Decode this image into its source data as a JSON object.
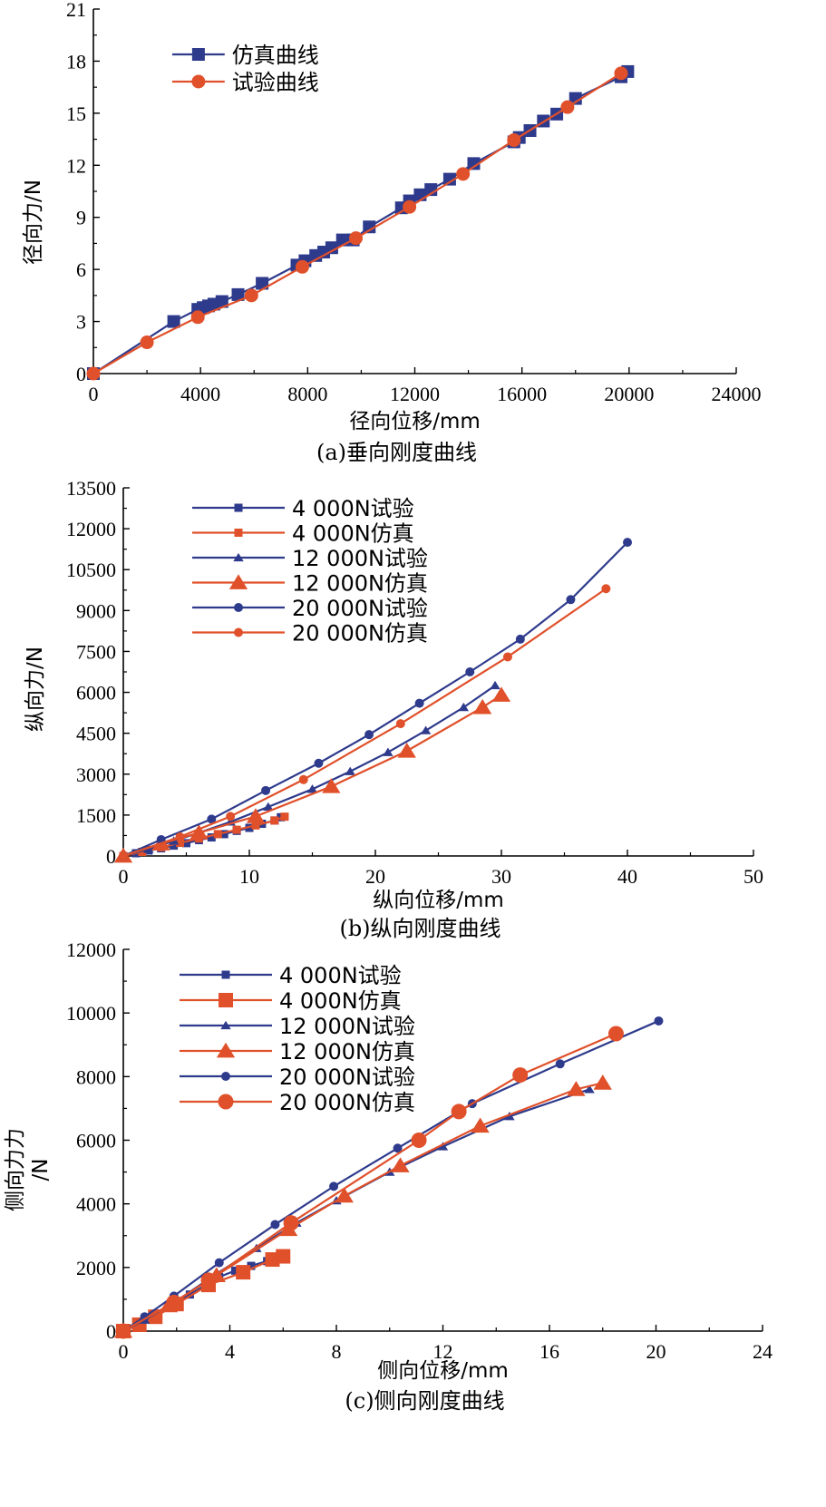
{
  "colors": {
    "sim_blue": "#2e3a8c",
    "test_orange": "#e0502a",
    "line_blue": "#3a3f93"
  },
  "chart_data": [
    {
      "id": "a",
      "type": "line",
      "caption": "(a)垂向刚度曲线",
      "xlabel": "径向位移/mm",
      "ylabel": "径向力/N",
      "xlim": [
        0,
        24000
      ],
      "ylim": [
        0,
        21
      ],
      "xticks": [
        0,
        4000,
        8000,
        12000,
        16000,
        20000,
        24000
      ],
      "yticks": [
        0,
        3,
        6,
        9,
        12,
        15,
        18,
        21
      ],
      "legend_position": "top-left",
      "series": [
        {
          "name": "仿真曲线",
          "color": "#2e3a8c",
          "marker": "square",
          "x": [
            0,
            3000,
            3900,
            4100,
            4300,
            4500,
            4800,
            5400,
            6300,
            7600,
            7900,
            8300,
            8600,
            8900,
            9300,
            9700,
            10300,
            11500,
            11800,
            12200,
            12600,
            13300,
            14200,
            15700,
            15900,
            16300,
            16800,
            17300,
            18000,
            19700,
            19950
          ],
          "y": [
            0,
            3.0,
            3.7,
            3.8,
            3.9,
            4.0,
            4.15,
            4.55,
            5.2,
            6.25,
            6.5,
            6.8,
            7.0,
            7.25,
            7.7,
            7.7,
            8.45,
            9.55,
            9.95,
            10.3,
            10.6,
            11.2,
            12.1,
            13.35,
            13.6,
            14.0,
            14.55,
            14.95,
            15.85,
            17.1,
            17.4
          ]
        },
        {
          "name": "试验曲线",
          "color": "#e0502a",
          "marker": "circle",
          "x": [
            0,
            2000,
            3900,
            5900,
            7800,
            9800,
            11800,
            13800,
            15700,
            17700,
            19700
          ],
          "y": [
            0,
            1.8,
            3.25,
            4.5,
            6.15,
            7.8,
            9.6,
            11.5,
            13.45,
            15.35,
            17.3
          ]
        }
      ]
    },
    {
      "id": "b",
      "type": "line",
      "caption": "(b)纵向刚度曲线",
      "xlabel": "纵向位移/mm",
      "ylabel": "纵向力/N",
      "xlim": [
        0,
        50
      ],
      "ylim": [
        0,
        13500
      ],
      "xticks": [
        0,
        10,
        20,
        30,
        40,
        50
      ],
      "yticks": [
        0,
        1500,
        3000,
        4500,
        6000,
        7500,
        9000,
        10500,
        12000,
        13500
      ],
      "legend_position": "top-left",
      "series": [
        {
          "name": "4 000N试验",
          "color": "#2e3a8c",
          "marker": "square",
          "msize": "small",
          "x": [
            0,
            1,
            2,
            3,
            4,
            5,
            6,
            7,
            8,
            9,
            10,
            11,
            12,
            12.5
          ],
          "y": [
            0,
            100,
            200,
            280,
            380,
            470,
            580,
            680,
            800,
            920,
            1030,
            1180,
            1300,
            1420
          ]
        },
        {
          "name": "4 000N仿真",
          "color": "#e0502a",
          "marker": "square",
          "msize": "small",
          "x": [
            0,
            1.5,
            3,
            4.5,
            6,
            7.5,
            9,
            10.5,
            12,
            12.8
          ],
          "y": [
            0,
            150,
            320,
            480,
            640,
            800,
            960,
            1120,
            1300,
            1440
          ]
        },
        {
          "name": "12 000N试验",
          "color": "#2e3a8c",
          "marker": "triangle",
          "msize": "small",
          "x": [
            0,
            2,
            4,
            6,
            8.5,
            11.5,
            15,
            18,
            21,
            24,
            27,
            29.5
          ],
          "y": [
            0,
            250,
            550,
            850,
            1250,
            1800,
            2450,
            3100,
            3800,
            4600,
            5450,
            6250
          ]
        },
        {
          "name": "12 000N仿真",
          "color": "#e0502a",
          "marker": "triangle",
          "msize": "large",
          "x": [
            0,
            3,
            6,
            10.5,
            16.5,
            22.5,
            28.5,
            30
          ],
          "y": [
            0,
            450,
            850,
            1450,
            2550,
            3850,
            5450,
            5900
          ]
        },
        {
          "name": "20 000N试验",
          "color": "#2e3a8c",
          "marker": "circle",
          "msize": "small",
          "x": [
            0,
            3,
            7,
            11.3,
            15.5,
            19.5,
            23.5,
            27.5,
            31.5,
            35.5,
            40
          ],
          "y": [
            0,
            600,
            1350,
            2400,
            3400,
            4450,
            5600,
            6750,
            7950,
            9400,
            11500
          ]
        },
        {
          "name": "20 000N仿真",
          "color": "#e0502a",
          "marker": "circle",
          "msize": "small",
          "x": [
            0,
            4.5,
            8.5,
            14.3,
            22,
            30.5,
            38.3
          ],
          "y": [
            0,
            700,
            1450,
            2800,
            4850,
            7300,
            9800
          ]
        }
      ]
    },
    {
      "id": "c",
      "type": "line",
      "caption": "(c)侧向刚度曲线",
      "xlabel": "侧向位移/mm",
      "ylabel": "侧向力力/N",
      "ylabel_lines": [
        "侧向力力",
        "/N"
      ],
      "xlim": [
        0,
        24
      ],
      "ylim": [
        0,
        12000
      ],
      "xticks": [
        0,
        4,
        8,
        12,
        16,
        20,
        24
      ],
      "yticks": [
        0,
        2000,
        4000,
        6000,
        8000,
        10000,
        12000
      ],
      "legend_position": "top-left",
      "series": [
        {
          "name": "4 000N试验",
          "color": "#2e3a8c",
          "marker": "square",
          "msize": "small",
          "x": [
            0,
            0.6,
            1.2,
            1.9,
            2.5,
            3.1,
            3.6,
            4.2,
            4.8,
            5.4,
            6
          ],
          "y": [
            0,
            250,
            550,
            850,
            1150,
            1450,
            1700,
            1900,
            2050,
            2200,
            2350
          ]
        },
        {
          "name": "4 000N仿真",
          "color": "#e0502a",
          "marker": "square",
          "msize": "large",
          "x": [
            0,
            0.6,
            1.2,
            2,
            3.2,
            4.5,
            5.6,
            6
          ],
          "y": [
            0,
            200,
            450,
            850,
            1450,
            1850,
            2250,
            2350
          ]
        },
        {
          "name": "12 000N试验",
          "color": "#2e3a8c",
          "marker": "triangle",
          "msize": "small",
          "x": [
            0,
            0.8,
            2,
            3.5,
            5,
            6.5,
            8,
            10,
            12,
            14.5,
            17.5
          ],
          "y": [
            0,
            350,
            950,
            1800,
            2600,
            3400,
            4100,
            5000,
            5800,
            6750,
            7600
          ]
        },
        {
          "name": "12 000N仿真",
          "color": "#e0502a",
          "marker": "triangle",
          "msize": "large",
          "x": [
            0,
            1.7,
            3.5,
            6.2,
            8.3,
            10.4,
            13.4,
            17,
            18
          ],
          "y": [
            0,
            800,
            1750,
            3200,
            4250,
            5200,
            6450,
            7600,
            7800
          ]
        },
        {
          "name": "20 000N试验",
          "color": "#2e3a8c",
          "marker": "circle",
          "msize": "small",
          "x": [
            0,
            0.8,
            1.9,
            3.6,
            5.7,
            7.9,
            10.3,
            13.1,
            16.4,
            20.1
          ],
          "y": [
            0,
            450,
            1100,
            2150,
            3350,
            4550,
            5750,
            7150,
            8400,
            9750
          ]
        },
        {
          "name": "20 000N仿真",
          "color": "#e0502a",
          "marker": "circle",
          "msize": "large",
          "x": [
            0,
            1.9,
            3.2,
            6.3,
            11.1,
            12.6,
            14.9,
            18.5
          ],
          "y": [
            0,
            900,
            1600,
            3400,
            6000,
            6900,
            8050,
            9350
          ]
        }
      ]
    }
  ]
}
